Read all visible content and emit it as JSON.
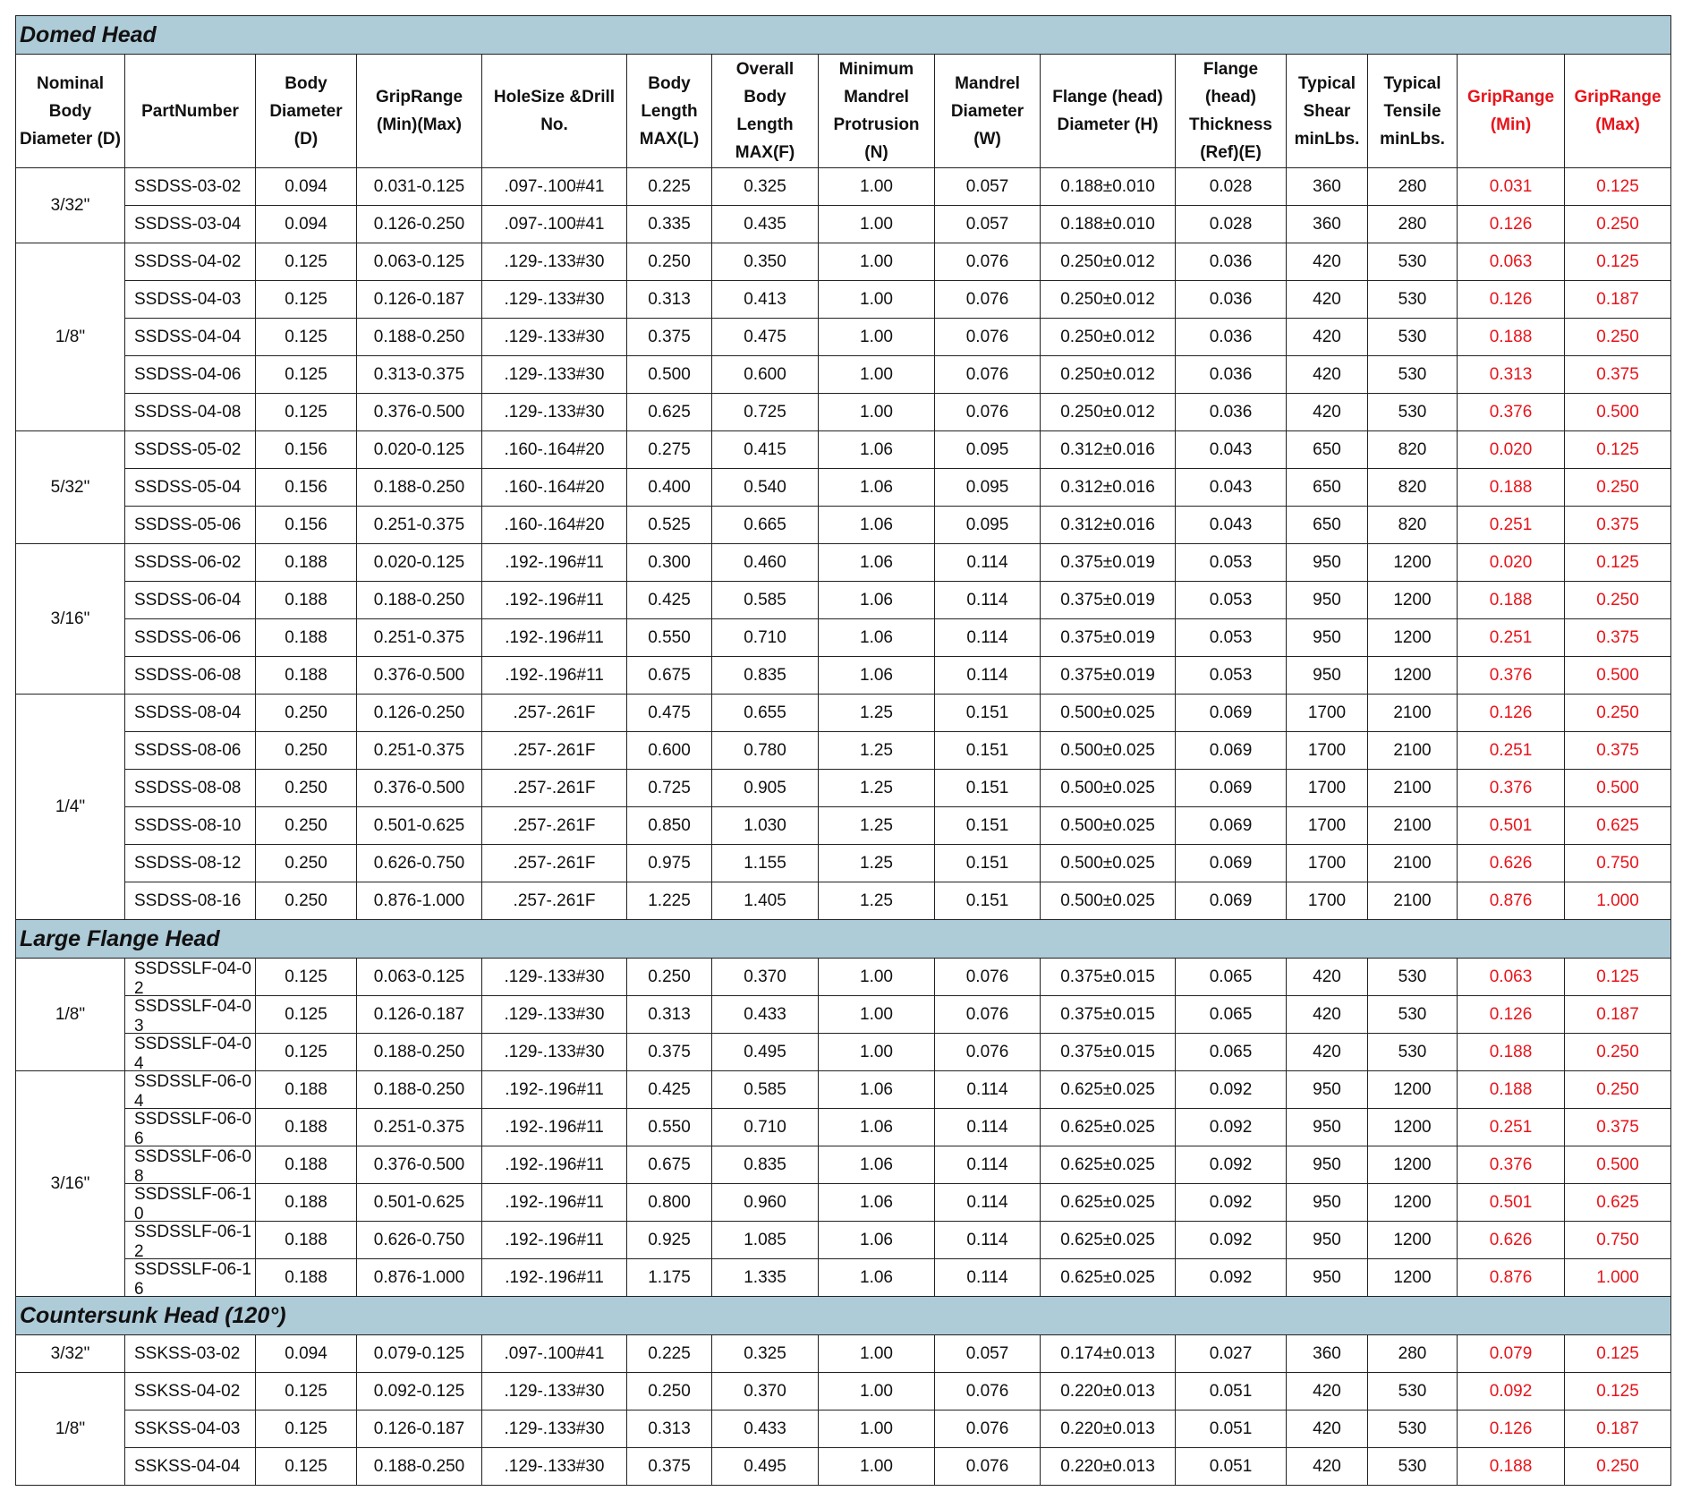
{
  "columns": [
    "Nominal Body Diameter (D)",
    "PartNumber",
    "Body Diameter (D)",
    "GripRange (Min)(Max)",
    "HoleSize &Drill No.",
    "Body Length MAX(L)",
    "Overall Body Length MAX(F)",
    "Minimum Mandrel Protrusion (N)",
    "Mandrel Diameter (W)",
    "Flange (head) Diameter (H)",
    "Flange (head) Thickness (Ref)(E)",
    "Typical Shear minLbs.",
    "Typical Tensile minLbs.",
    "GripRange (Min)",
    "GripRange (Max)"
  ],
  "sections": [
    {
      "title": "Domed Head",
      "groups": [
        {
          "diameter": "3/32\"",
          "rows": [
            [
              "SSDSS-03-02",
              "0.094",
              "0.031-0.125",
              ".097-.100#41",
              "0.225",
              "0.325",
              "1.00",
              "0.057",
              "0.188±0.010",
              "0.028",
              "360",
              "280",
              "0.031",
              "0.125"
            ],
            [
              "SSDSS-03-04",
              "0.094",
              "0.126-0.250",
              ".097-.100#41",
              "0.335",
              "0.435",
              "1.00",
              "0.057",
              "0.188±0.010",
              "0.028",
              "360",
              "280",
              "0.126",
              "0.250"
            ]
          ]
        },
        {
          "diameter": "1/8\"",
          "rows": [
            [
              "SSDSS-04-02",
              "0.125",
              "0.063-0.125",
              ".129-.133#30",
              "0.250",
              "0.350",
              "1.00",
              "0.076",
              "0.250±0.012",
              "0.036",
              "420",
              "530",
              "0.063",
              "0.125"
            ],
            [
              "SSDSS-04-03",
              "0.125",
              "0.126-0.187",
              ".129-.133#30",
              "0.313",
              "0.413",
              "1.00",
              "0.076",
              "0.250±0.012",
              "0.036",
              "420",
              "530",
              "0.126",
              "0.187"
            ],
            [
              "SSDSS-04-04",
              "0.125",
              "0.188-0.250",
              ".129-.133#30",
              "0.375",
              "0.475",
              "1.00",
              "0.076",
              "0.250±0.012",
              "0.036",
              "420",
              "530",
              "0.188",
              "0.250"
            ],
            [
              "SSDSS-04-06",
              "0.125",
              "0.313-0.375",
              ".129-.133#30",
              "0.500",
              "0.600",
              "1.00",
              "0.076",
              "0.250±0.012",
              "0.036",
              "420",
              "530",
              "0.313",
              "0.375"
            ],
            [
              "SSDSS-04-08",
              "0.125",
              "0.376-0.500",
              ".129-.133#30",
              "0.625",
              "0.725",
              "1.00",
              "0.076",
              "0.250±0.012",
              "0.036",
              "420",
              "530",
              "0.376",
              "0.500"
            ]
          ]
        },
        {
          "diameter": "5/32\"",
          "rows": [
            [
              "SSDSS-05-02",
              "0.156",
              "0.020-0.125",
              ".160-.164#20",
              "0.275",
              "0.415",
              "1.06",
              "0.095",
              "0.312±0.016",
              "0.043",
              "650",
              "820",
              "0.020",
              "0.125"
            ],
            [
              "SSDSS-05-04",
              "0.156",
              "0.188-0.250",
              ".160-.164#20",
              "0.400",
              "0.540",
              "1.06",
              "0.095",
              "0.312±0.016",
              "0.043",
              "650",
              "820",
              "0.188",
              "0.250"
            ],
            [
              "SSDSS-05-06",
              "0.156",
              "0.251-0.375",
              ".160-.164#20",
              "0.525",
              "0.665",
              "1.06",
              "0.095",
              "0.312±0.016",
              "0.043",
              "650",
              "820",
              "0.251",
              "0.375"
            ]
          ]
        },
        {
          "diameter": "3/16\"",
          "rows": [
            [
              "SSDSS-06-02",
              "0.188",
              "0.020-0.125",
              ".192-.196#11",
              "0.300",
              "0.460",
              "1.06",
              "0.114",
              "0.375±0.019",
              "0.053",
              "950",
              "1200",
              "0.020",
              "0.125"
            ],
            [
              "SSDSS-06-04",
              "0.188",
              "0.188-0.250",
              ".192-.196#11",
              "0.425",
              "0.585",
              "1.06",
              "0.114",
              "0.375±0.019",
              "0.053",
              "950",
              "1200",
              "0.188",
              "0.250"
            ],
            [
              "SSDSS-06-06",
              "0.188",
              "0.251-0.375",
              ".192-.196#11",
              "0.550",
              "0.710",
              "1.06",
              "0.114",
              "0.375±0.019",
              "0.053",
              "950",
              "1200",
              "0.251",
              "0.375"
            ],
            [
              "SSDSS-06-08",
              "0.188",
              "0.376-0.500",
              ".192-.196#11",
              "0.675",
              "0.835",
              "1.06",
              "0.114",
              "0.375±0.019",
              "0.053",
              "950",
              "1200",
              "0.376",
              "0.500"
            ]
          ]
        },
        {
          "diameter": "1/4\"",
          "rows": [
            [
              "SSDSS-08-04",
              "0.250",
              "0.126-0.250",
              ".257-.261F",
              "0.475",
              "0.655",
              "1.25",
              "0.151",
              "0.500±0.025",
              "0.069",
              "1700",
              "2100",
              "0.126",
              "0.250"
            ],
            [
              "SSDSS-08-06",
              "0.250",
              "0.251-0.375",
              ".257-.261F",
              "0.600",
              "0.780",
              "1.25",
              "0.151",
              "0.500±0.025",
              "0.069",
              "1700",
              "2100",
              "0.251",
              "0.375"
            ],
            [
              "SSDSS-08-08",
              "0.250",
              "0.376-0.500",
              ".257-.261F",
              "0.725",
              "0.905",
              "1.25",
              "0.151",
              "0.500±0.025",
              "0.069",
              "1700",
              "2100",
              "0.376",
              "0.500"
            ],
            [
              "SSDSS-08-10",
              "0.250",
              "0.501-0.625",
              ".257-.261F",
              "0.850",
              "1.030",
              "1.25",
              "0.151",
              "0.500±0.025",
              "0.069",
              "1700",
              "2100",
              "0.501",
              "0.625"
            ],
            [
              "SSDSS-08-12",
              "0.250",
              "0.626-0.750",
              ".257-.261F",
              "0.975",
              "1.155",
              "1.25",
              "0.151",
              "0.500±0.025",
              "0.069",
              "1700",
              "2100",
              "0.626",
              "0.750"
            ],
            [
              "SSDSS-08-16",
              "0.250",
              "0.876-1.000",
              ".257-.261F",
              "1.225",
              "1.405",
              "1.25",
              "0.151",
              "0.500±0.025",
              "0.069",
              "1700",
              "2100",
              "0.876",
              "1.000"
            ]
          ]
        }
      ]
    },
    {
      "title": "Large Flange Head",
      "groups": [
        {
          "diameter": "1/8\"",
          "rows": [
            [
              "SSDSSLF-04-02",
              "0.125",
              "0.063-0.125",
              ".129-.133#30",
              "0.250",
              "0.370",
              "1.00",
              "0.076",
              "0.375±0.015",
              "0.065",
              "420",
              "530",
              "0.063",
              "0.125"
            ],
            [
              "SSDSSLF-04-03",
              "0.125",
              "0.126-0.187",
              ".129-.133#30",
              "0.313",
              "0.433",
              "1.00",
              "0.076",
              "0.375±0.015",
              "0.065",
              "420",
              "530",
              "0.126",
              "0.187"
            ],
            [
              "SSDSSLF-04-04",
              "0.125",
              "0.188-0.250",
              ".129-.133#30",
              "0.375",
              "0.495",
              "1.00",
              "0.076",
              "0.375±0.015",
              "0.065",
              "420",
              "530",
              "0.188",
              "0.250"
            ]
          ]
        },
        {
          "diameter": "3/16\"",
          "rows": [
            [
              "SSDSSLF-06-04",
              "0.188",
              "0.188-0.250",
              ".192-.196#11",
              "0.425",
              "0.585",
              "1.06",
              "0.114",
              "0.625±0.025",
              "0.092",
              "950",
              "1200",
              "0.188",
              "0.250"
            ],
            [
              "SSDSSLF-06-06",
              "0.188",
              "0.251-0.375",
              ".192-.196#11",
              "0.550",
              "0.710",
              "1.06",
              "0.114",
              "0.625±0.025",
              "0.092",
              "950",
              "1200",
              "0.251",
              "0.375"
            ],
            [
              "SSDSSLF-06-08",
              "0.188",
              "0.376-0.500",
              ".192-.196#11",
              "0.675",
              "0.835",
              "1.06",
              "0.114",
              "0.625±0.025",
              "0.092",
              "950",
              "1200",
              "0.376",
              "0.500"
            ],
            [
              "SSDSSLF-06-10",
              "0.188",
              "0.501-0.625",
              ".192-.196#11",
              "0.800",
              "0.960",
              "1.06",
              "0.114",
              "0.625±0.025",
              "0.092",
              "950",
              "1200",
              "0.501",
              "0.625"
            ],
            [
              "SSDSSLF-06-12",
              "0.188",
              "0.626-0.750",
              ".192-.196#11",
              "0.925",
              "1.085",
              "1.06",
              "0.114",
              "0.625±0.025",
              "0.092",
              "950",
              "1200",
              "0.626",
              "0.750"
            ],
            [
              "SSDSSLF-06-16",
              "0.188",
              "0.876-1.000",
              ".192-.196#11",
              "1.175",
              "1.335",
              "1.06",
              "0.114",
              "0.625±0.025",
              "0.092",
              "950",
              "1200",
              "0.876",
              "1.000"
            ]
          ]
        }
      ]
    },
    {
      "title": "Countersunk Head (120°)",
      "groups": [
        {
          "diameter": "3/32\"",
          "rows": [
            [
              "SSKSS-03-02",
              "0.094",
              "0.079-0.125",
              ".097-.100#41",
              "0.225",
              "0.325",
              "1.00",
              "0.057",
              "0.174±0.013",
              "0.027",
              "360",
              "280",
              "0.079",
              "0.125"
            ]
          ]
        },
        {
          "diameter": "1/8\"",
          "rows": [
            [
              "SSKSS-04-02",
              "0.125",
              "0.092-0.125",
              ".129-.133#30",
              "0.250",
              "0.370",
              "1.00",
              "0.076",
              "0.220±0.013",
              "0.051",
              "420",
              "530",
              "0.092",
              "0.125"
            ],
            [
              "SSKSS-04-03",
              "0.125",
              "0.126-0.187",
              ".129-.133#30",
              "0.313",
              "0.433",
              "1.00",
              "0.076",
              "0.220±0.013",
              "0.051",
              "420",
              "530",
              "0.126",
              "0.187"
            ],
            [
              "SSKSS-04-04",
              "0.125",
              "0.188-0.250",
              ".129-.133#30",
              "0.375",
              "0.495",
              "1.00",
              "0.076",
              "0.220±0.013",
              "0.051",
              "420",
              "530",
              "0.188",
              "0.250"
            ]
          ]
        }
      ]
    }
  ]
}
